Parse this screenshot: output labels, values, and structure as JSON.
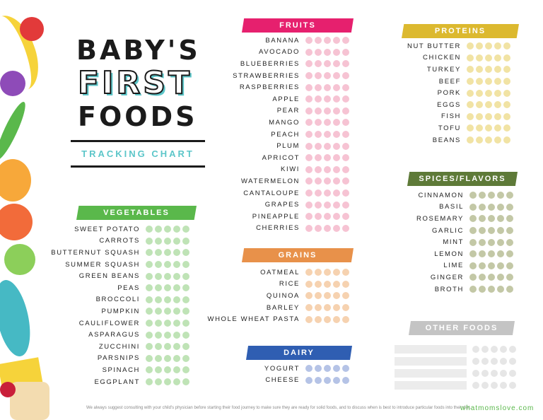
{
  "title": {
    "line1": "BABY'S",
    "line2": "FIRST",
    "line3": "FOODS",
    "subtitle": "TRACKING CHART"
  },
  "colors": {
    "vegetables": "#5ab84b",
    "fruits": "#e6206e",
    "grains": "#e8914a",
    "dairy": "#2f5eb2",
    "proteins": "#dcb92f",
    "spices": "#5e7a38",
    "other": "#c4c4c4",
    "veg_dot": "#bfe3b6",
    "fruit_dot": "#f6c3d3",
    "grain_dot": "#f6d2b0",
    "dairy_dot": "#b5c3e6",
    "protein_dot": "#f1e3a4",
    "spice_dot": "#c3c8a6",
    "other_dot": "#e6e6e6"
  },
  "vegetables": {
    "header": "VEGETABLES",
    "items": [
      "SWEET POTATO",
      "CARROTS",
      "BUTTERNUT SQUASH",
      "SUMMER SQUASH",
      "GREEN BEANS",
      "PEAS",
      "BROCCOLI",
      "PUMPKIN",
      "CAULIFLOWER",
      "ASPARAGUS",
      "ZUCCHINI",
      "PARSNIPS",
      "SPINACH",
      "EGGPLANT"
    ]
  },
  "fruits": {
    "header": "FRUITS",
    "items": [
      "BANANA",
      "AVOCADO",
      "BLUEBERRIES",
      "STRAWBERRIES",
      "RASPBERRIES",
      "APPLE",
      "PEAR",
      "MANGO",
      "PEACH",
      "PLUM",
      "APRICOT",
      "KIWI",
      "WATERMELON",
      "CANTALOUPE",
      "GRAPES",
      "PINEAPPLE",
      "CHERRIES"
    ]
  },
  "grains": {
    "header": "GRAINS",
    "items": [
      "OATMEAL",
      "RICE",
      "QUINOA",
      "BARLEY",
      "WHOLE WHEAT PASTA"
    ]
  },
  "dairy": {
    "header": "DAIRY",
    "items": [
      "YOGURT",
      "CHEESE"
    ]
  },
  "proteins": {
    "header": "PROTEINS",
    "items": [
      "NUT BUTTER",
      "CHICKEN",
      "TURKEY",
      "BEEF",
      "PORK",
      "EGGS",
      "FISH",
      "TOFU",
      "BEANS"
    ]
  },
  "spices": {
    "header": "SPICES/FLAVORS",
    "items": [
      "CINNAMON",
      "BASIL",
      "ROSEMARY",
      "GARLIC",
      "MINT",
      "LEMON",
      "LIME",
      "GINGER",
      "BROTH"
    ]
  },
  "other": {
    "header": "OTHER FOODS",
    "rows": 4
  },
  "footer": {
    "disclaimer": "We always suggest consulting with your child's physician before starting their food journey to make sure they are ready for solid foods, and to discuss when is best to introduce particular foods into their diet.",
    "site": "whatmomslove.com"
  }
}
